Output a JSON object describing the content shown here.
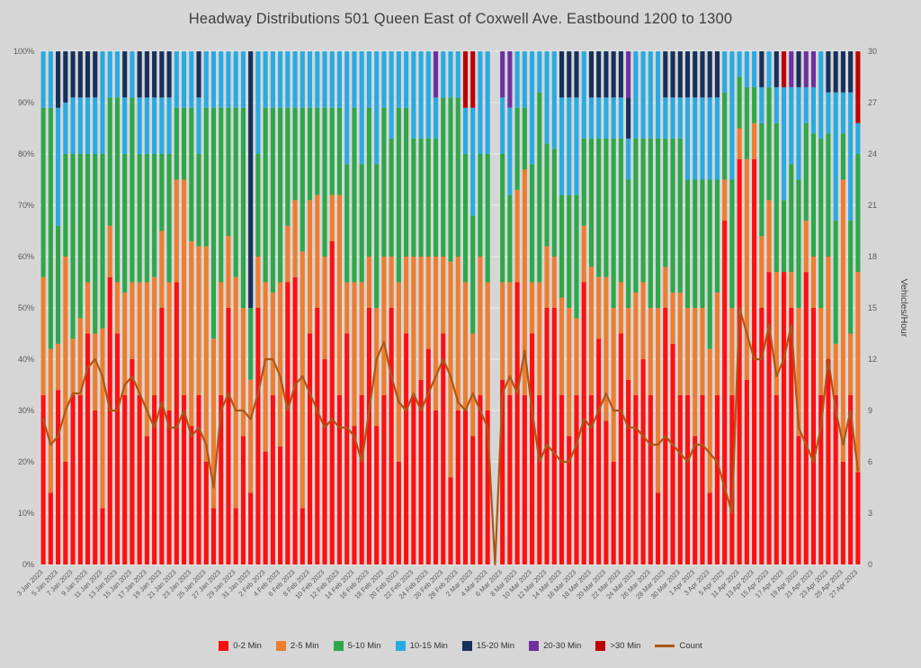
{
  "title": "Headway Distributions 501 Queen  East of Coxwell Ave. Eastbound 1200 to 1300",
  "chart_data": {
    "type": "bar",
    "stacked_percent": true,
    "title": "Headway Distributions 501 Queen  East of Coxwell Ave. Eastbound 1200 to 1300",
    "left_axis": {
      "min": 0,
      "max": 100,
      "step": 10,
      "format": "percent"
    },
    "right_axis": {
      "min": 0,
      "max": 30,
      "step": 3,
      "title": "Vehicles/Hour"
    },
    "series": [
      {
        "name": "0-2 Min",
        "color": "#FE1010"
      },
      {
        "name": "2-5 Min",
        "color": "#ED7D31"
      },
      {
        "name": "5-10 Min",
        "color": "#2DA84A"
      },
      {
        "name": "10-15 Min",
        "color": "#29ABE2"
      },
      {
        "name": "15-20 Min",
        "color": "#17305C"
      },
      {
        "name": "20-30 Min",
        "color": "#7030A0"
      },
      {
        "name": ">30 Min",
        "color": "#C00000"
      }
    ],
    "legend": [
      {
        "label": "0-2 Min",
        "color": "#FE1010",
        "type": "box"
      },
      {
        "label": "2-5 Min",
        "color": "#ED7D31",
        "type": "box"
      },
      {
        "label": "5-10 Min",
        "color": "#2DA84A",
        "type": "box"
      },
      {
        "label": "10-15 Min",
        "color": "#29ABE2",
        "type": "box"
      },
      {
        "label": "15-20 Min",
        "color": "#17305C",
        "type": "box"
      },
      {
        "label": "20-30 Min",
        "color": "#7030A0",
        "type": "box"
      },
      {
        "label": ">30 Min",
        "color": "#C00000",
        "type": "box"
      },
      {
        "label": "Count",
        "color": "#AE5714",
        "type": "line"
      }
    ],
    "categories": [
      "3 Jan 2023",
      "4 Jan 2023",
      "5 Jan 2023",
      "6 Jan 2023",
      "7 Jan 2023",
      "8 Jan 2023",
      "9 Jan 2023",
      "10 Jan 2023",
      "11 Jan 2023",
      "12 Jan 2023",
      "13 Jan 2023",
      "14 Jan 2023",
      "15 Jan 2023",
      "16 Jan 2023",
      "17 Jan 2023",
      "18 Jan 2023",
      "19 Jan 2023",
      "20 Jan 2023",
      "21 Jan 2023",
      "22 Jan 2023",
      "23 Jan 2023",
      "24 Jan 2023",
      "25 Jan 2023",
      "26 Jan 2023",
      "27 Jan 2023",
      "28 Jan 2023",
      "29 Jan 2023",
      "30 Jan 2023",
      "31 Jan 2023",
      "1 Feb 2023",
      "2 Feb 2023",
      "3 Feb 2023",
      "4 Feb 2023",
      "5 Feb 2023",
      "6 Feb 2023",
      "7 Feb 2023",
      "8 Feb 2023",
      "9 Feb 2023",
      "10 Feb 2023",
      "11 Feb 2023",
      "12 Feb 2023",
      "13 Feb 2023",
      "14 Feb 2023",
      "15 Feb 2023",
      "16 Feb 2023",
      "17 Feb 2023",
      "18 Feb 2023",
      "19 Feb 2023",
      "20 Feb 2023",
      "21 Feb 2023",
      "22 Feb 2023",
      "23 Feb 2023",
      "24 Feb 2023",
      "25 Feb 2023",
      "26 Feb 2023",
      "27 Feb 2023",
      "28 Feb 2023",
      "1 Mar 2023",
      "2 Mar 2023",
      "3 Mar 2023",
      "4 Mar 2023",
      "5 Mar 2023",
      "6 Mar 2023",
      "7 Mar 2023",
      "8 Mar 2023",
      "9 Mar 2023",
      "10 Mar 2023",
      "11 Mar 2023",
      "12 Mar 2023",
      "13 Mar 2023",
      "14 Mar 2023",
      "15 Mar 2023",
      "16 Mar 2023",
      "17 Mar 2023",
      "18 Mar 2023",
      "19 Mar 2023",
      "20 Mar 2023",
      "21 Mar 2023",
      "22 Mar 2023",
      "23 Mar 2023",
      "24 Mar 2023",
      "25 Mar 2023",
      "26 Mar 2023",
      "27 Mar 2023",
      "28 Mar 2023",
      "29 Mar 2023",
      "30 Mar 2023",
      "31 Mar 2023",
      "1 Apr 2023",
      "2 Apr 2023",
      "3 Apr 2023",
      "4 Apr 2023",
      "5 Apr 2023",
      "6 Apr 2023",
      "11 Apr 2023",
      "12 Apr 2023",
      "13 Apr 2023",
      "14 Apr 2023",
      "15 Apr 2023",
      "16 Apr 2023",
      "17 Apr 2023",
      "18 Apr 2023",
      "19 Apr 2023",
      "20 Apr 2023",
      "21 Apr 2023",
      "22 Apr 2023",
      "23 Apr 2023",
      "24 Apr 2023",
      "25 Apr 2023",
      "26 Apr 2023",
      "27 Apr 2023"
    ],
    "bars": [
      [
        33,
        23,
        33,
        11,
        0,
        0,
        0
      ],
      [
        14,
        28,
        47,
        11,
        0,
        0,
        0
      ],
      [
        34,
        9,
        23,
        23,
        11,
        0,
        0
      ],
      [
        20,
        40,
        20,
        10,
        10,
        0,
        0
      ],
      [
        33,
        11,
        36,
        11,
        9,
        0,
        0
      ],
      [
        33,
        15,
        32,
        11,
        9,
        0,
        0
      ],
      [
        45,
        10,
        25,
        11,
        9,
        0,
        0
      ],
      [
        30,
        15,
        35,
        11,
        9,
        0,
        0
      ],
      [
        11,
        35,
        34,
        20,
        0,
        0,
        0
      ],
      [
        56,
        10,
        25,
        9,
        0,
        0,
        0
      ],
      [
        45,
        10,
        36,
        9,
        0,
        0,
        0
      ],
      [
        33,
        20,
        27,
        11,
        9,
        0,
        0
      ],
      [
        40,
        15,
        36,
        9,
        0,
        0,
        0
      ],
      [
        33,
        22,
        25,
        11,
        9,
        0,
        0
      ],
      [
        25,
        30,
        25,
        11,
        9,
        0,
        0
      ],
      [
        33,
        23,
        24,
        11,
        9,
        0,
        0
      ],
      [
        50,
        15,
        15,
        11,
        9,
        0,
        0
      ],
      [
        30,
        25,
        25,
        11,
        9,
        0,
        0
      ],
      [
        55,
        20,
        14,
        11,
        0,
        0,
        0
      ],
      [
        33,
        42,
        14,
        11,
        0,
        0,
        0
      ],
      [
        27,
        36,
        26,
        11,
        0,
        0,
        0
      ],
      [
        33,
        29,
        18,
        11,
        9,
        0,
        0
      ],
      [
        20,
        42,
        27,
        11,
        0,
        0,
        0
      ],
      [
        11,
        33,
        45,
        11,
        0,
        0,
        0
      ],
      [
        33,
        22,
        34,
        11,
        0,
        0,
        0
      ],
      [
        50,
        14,
        25,
        11,
        0,
        0,
        0
      ],
      [
        11,
        45,
        33,
        11,
        0,
        0,
        0
      ],
      [
        25,
        25,
        39,
        11,
        0,
        0,
        0
      ],
      [
        14,
        22,
        14,
        0,
        50,
        0,
        0
      ],
      [
        50,
        10,
        20,
        20,
        0,
        0,
        0
      ],
      [
        22,
        33,
        34,
        11,
        0,
        0,
        0
      ],
      [
        33,
        20,
        36,
        11,
        0,
        0,
        0
      ],
      [
        23,
        32,
        34,
        11,
        0,
        0,
        0
      ],
      [
        55,
        11,
        23,
        11,
        0,
        0,
        0
      ],
      [
        56,
        15,
        18,
        11,
        0,
        0,
        0
      ],
      [
        11,
        50,
        28,
        11,
        0,
        0,
        0
      ],
      [
        45,
        26,
        18,
        11,
        0,
        0,
        0
      ],
      [
        50,
        22,
        17,
        11,
        0,
        0,
        0
      ],
      [
        40,
        20,
        29,
        11,
        0,
        0,
        0
      ],
      [
        63,
        9,
        17,
        11,
        0,
        0,
        0
      ],
      [
        33,
        39,
        17,
        11,
        0,
        0,
        0
      ],
      [
        45,
        10,
        23,
        22,
        0,
        0,
        0
      ],
      [
        27,
        28,
        34,
        11,
        0,
        0,
        0
      ],
      [
        33,
        22,
        23,
        22,
        0,
        0,
        0
      ],
      [
        50,
        10,
        29,
        11,
        0,
        0,
        0
      ],
      [
        27,
        23,
        28,
        22,
        0,
        0,
        0
      ],
      [
        33,
        27,
        29,
        11,
        0,
        0,
        0
      ],
      [
        50,
        10,
        23,
        17,
        0,
        0,
        0
      ],
      [
        20,
        35,
        34,
        11,
        0,
        0,
        0
      ],
      [
        45,
        15,
        29,
        11,
        0,
        0,
        0
      ],
      [
        33,
        27,
        23,
        17,
        0,
        0,
        0
      ],
      [
        36,
        24,
        23,
        17,
        0,
        0,
        0
      ],
      [
        42,
        18,
        23,
        17,
        0,
        0,
        0
      ],
      [
        30,
        30,
        23,
        8,
        0,
        9,
        0
      ],
      [
        45,
        15,
        31,
        9,
        0,
        0,
        0
      ],
      [
        17,
        42,
        32,
        9,
        0,
        0,
        0
      ],
      [
        30,
        30,
        31,
        9,
        0,
        0,
        0
      ],
      [
        30,
        25,
        25,
        9,
        0,
        0,
        11
      ],
      [
        25,
        20,
        23,
        21,
        0,
        0,
        11
      ],
      [
        33,
        27,
        20,
        20,
        0,
        0,
        0
      ],
      [
        30,
        25,
        25,
        20,
        0,
        0,
        0
      ],
      [
        0,
        0,
        0,
        0,
        0,
        0,
        0
      ],
      [
        36,
        19,
        25,
        11,
        0,
        9,
        0
      ],
      [
        33,
        22,
        17,
        17,
        0,
        11,
        0
      ],
      [
        55,
        18,
        16,
        11,
        0,
        0,
        0
      ],
      [
        33,
        44,
        12,
        11,
        0,
        0,
        0
      ],
      [
        45,
        10,
        23,
        22,
        0,
        0,
        0
      ],
      [
        33,
        22,
        37,
        8,
        0,
        0,
        0
      ],
      [
        50,
        12,
        20,
        18,
        0,
        0,
        0
      ],
      [
        50,
        10,
        21,
        19,
        0,
        0,
        0
      ],
      [
        33,
        19,
        20,
        19,
        9,
        0,
        0
      ],
      [
        25,
        25,
        22,
        19,
        9,
        0,
        0
      ],
      [
        33,
        15,
        24,
        19,
        9,
        0,
        0
      ],
      [
        55,
        11,
        17,
        17,
        0,
        0,
        0
      ],
      [
        33,
        25,
        25,
        8,
        9,
        0,
        0
      ],
      [
        44,
        12,
        27,
        8,
        9,
        0,
        0
      ],
      [
        28,
        28,
        27,
        8,
        9,
        0,
        0
      ],
      [
        20,
        30,
        33,
        8,
        9,
        0,
        0
      ],
      [
        45,
        10,
        28,
        8,
        9,
        0,
        0
      ],
      [
        36,
        14,
        25,
        8,
        8,
        9,
        0
      ],
      [
        33,
        20,
        30,
        17,
        0,
        0,
        0
      ],
      [
        40,
        15,
        28,
        17,
        0,
        0,
        0
      ],
      [
        33,
        17,
        33,
        17,
        0,
        0,
        0
      ],
      [
        14,
        36,
        33,
        17,
        0,
        0,
        0
      ],
      [
        50,
        8,
        25,
        8,
        9,
        0,
        0
      ],
      [
        43,
        10,
        30,
        8,
        9,
        0,
        0
      ],
      [
        33,
        20,
        30,
        8,
        9,
        0,
        0
      ],
      [
        33,
        17,
        25,
        16,
        9,
        0,
        0
      ],
      [
        25,
        25,
        25,
        16,
        9,
        0,
        0
      ],
      [
        33,
        17,
        25,
        16,
        9,
        0,
        0
      ],
      [
        14,
        28,
        33,
        16,
        9,
        0,
        0
      ],
      [
        33,
        20,
        22,
        16,
        9,
        0,
        0
      ],
      [
        67,
        8,
        17,
        8,
        0,
        0,
        0
      ],
      [
        33,
        17,
        25,
        25,
        0,
        0,
        0
      ],
      [
        79,
        6,
        10,
        5,
        0,
        0,
        0
      ],
      [
        36,
        43,
        14,
        7,
        0,
        0,
        0
      ],
      [
        79,
        7,
        7,
        7,
        0,
        0,
        0
      ],
      [
        50,
        14,
        22,
        7,
        7,
        0,
        0
      ],
      [
        57,
        14,
        22,
        7,
        0,
        0,
        0
      ],
      [
        33,
        24,
        29,
        7,
        7,
        0,
        0
      ],
      [
        57,
        0,
        14,
        22,
        0,
        0,
        7
      ],
      [
        50,
        7,
        21,
        15,
        0,
        7,
        0
      ],
      [
        25,
        25,
        25,
        18,
        7,
        0,
        0
      ],
      [
        57,
        10,
        19,
        7,
        0,
        7,
        0
      ],
      [
        50,
        10,
        24,
        9,
        0,
        7,
        0
      ],
      [
        33,
        17,
        33,
        17,
        0,
        0,
        0
      ],
      [
        40,
        20,
        24,
        8,
        8,
        0,
        0
      ],
      [
        33,
        10,
        24,
        25,
        8,
        0,
        0
      ],
      [
        20,
        55,
        9,
        8,
        8,
        0,
        0
      ],
      [
        33,
        12,
        22,
        25,
        8,
        0,
        0
      ],
      [
        18,
        39,
        23,
        6,
        0,
        0,
        14
      ]
    ],
    "count_series": {
      "name": "Count",
      "color": "#AE5714",
      "values": [
        8.5,
        7,
        7.5,
        9,
        10,
        10,
        11.5,
        12,
        11,
        9,
        9,
        10.5,
        11,
        10,
        9,
        8,
        9.5,
        8,
        8,
        9,
        7.5,
        8,
        7,
        4.5,
        9,
        10,
        9,
        9,
        8.5,
        10,
        12,
        12,
        11,
        9,
        10.5,
        11,
        10,
        9,
        8,
        8.5,
        8,
        8,
        7.5,
        6,
        9,
        12,
        13,
        11,
        9.5,
        9,
        10,
        9,
        10,
        11,
        12,
        11,
        9.5,
        9,
        10,
        9,
        8,
        0,
        10,
        11,
        10,
        12.5,
        9,
        6,
        7,
        6.5,
        6,
        6,
        7,
        8.5,
        8,
        9,
        10,
        9,
        9,
        8,
        8,
        7.5,
        7,
        7,
        7.5,
        7,
        6.5,
        6,
        7,
        7,
        6.5,
        6,
        4.5,
        3,
        15,
        13.5,
        12,
        12,
        14,
        11,
        12,
        14,
        8,
        7,
        6,
        8,
        12,
        9,
        7,
        9,
        5.5
      ]
    }
  }
}
